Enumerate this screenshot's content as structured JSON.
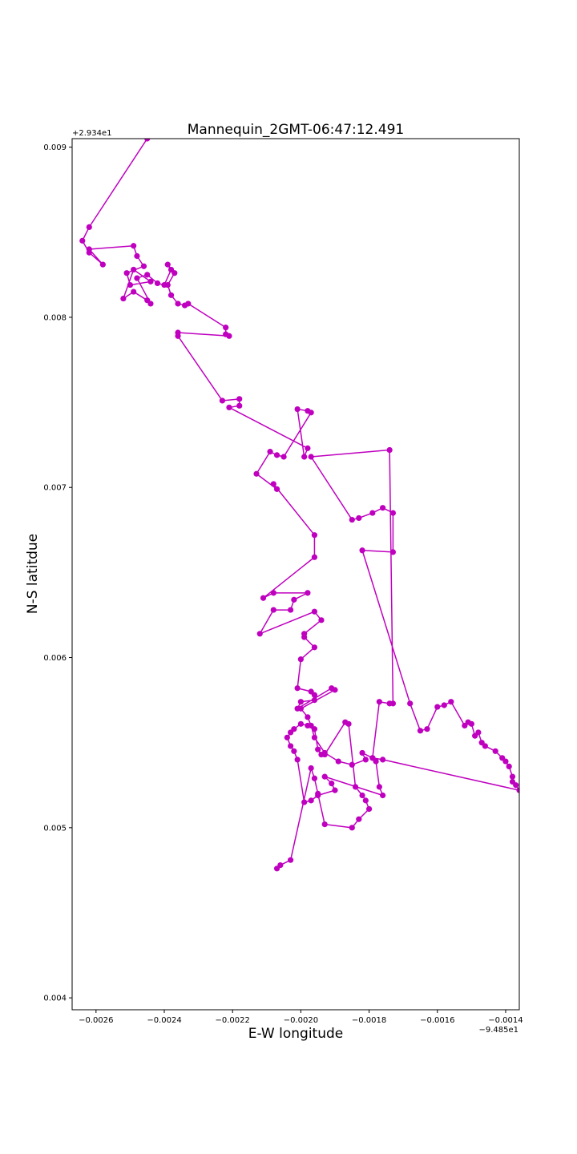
{
  "chart_data": {
    "type": "line",
    "title": "Mannequin_2GMT-06:47:12.491",
    "xlabel": "E-W longitude",
    "ylabel": "N-S latitdue",
    "x_offset_text": "−9.485e1",
    "y_offset_text": "+2.934e1",
    "xlim": [
      -0.00267,
      -0.00136
    ],
    "ylim": [
      0.00393,
      0.00905
    ],
    "xticks": [
      -0.0026,
      -0.0024,
      -0.0022,
      -0.002,
      -0.0018,
      -0.0016,
      -0.0014
    ],
    "xtick_labels": [
      "−0.0026",
      "−0.0024",
      "−0.0022",
      "−0.0020",
      "−0.0018",
      "−0.0016",
      "−0.0014"
    ],
    "yticks": [
      0.004,
      0.005,
      0.006,
      0.007,
      0.008,
      0.009
    ],
    "ytick_labels": [
      "0.004",
      "0.005",
      "0.006",
      "0.007",
      "0.008",
      "0.009"
    ],
    "grid": false,
    "color": "#bf00bf",
    "marker": "circle",
    "series": [
      {
        "x": [
          -0.00245,
          -0.00262,
          -0.00264,
          -0.00262,
          -0.00258,
          -0.00262,
          -0.00249,
          -0.00248,
          -0.00246,
          -0.00251,
          -0.0025,
          -0.00244,
          -0.00249,
          -0.00252,
          -0.00249,
          -0.00245,
          -0.00244,
          -0.00248,
          -0.00245,
          -0.00242,
          -0.0024,
          -0.00238,
          -0.00239,
          -0.00237,
          -0.00239,
          -0.00238,
          -0.00236,
          -0.00234,
          -0.00233,
          -0.00222,
          -0.00222,
          -0.00221,
          -0.00236,
          -0.00236,
          -0.00223,
          -0.00218,
          -0.00218,
          -0.00221,
          -0.00198,
          -0.00199,
          -0.00201,
          -0.00198,
          -0.00197,
          -0.00205,
          -0.00207,
          -0.00209,
          -0.00213,
          -0.00207,
          -0.00208,
          -0.00196,
          -0.00196,
          -0.00211,
          -0.00208,
          -0.00198,
          -0.00202,
          -0.00203,
          -0.00208,
          -0.00212,
          -0.00196,
          -0.00194,
          -0.00199,
          -0.00199,
          -0.00196,
          -0.002,
          -0.00201,
          -0.00197,
          -0.00196,
          -0.00196,
          -0.002,
          -0.00201,
          -0.00191,
          -0.0019,
          -0.002,
          -0.00198,
          -0.00197,
          -0.00196,
          -0.00193,
          -0.00189,
          -0.00185,
          -0.00181,
          -0.00182,
          -0.00179,
          -0.00177,
          -0.00174,
          -0.00173,
          -0.00174,
          -0.00197,
          -0.00185,
          -0.00183,
          -0.00179,
          -0.00176,
          -0.00173,
          -0.00173,
          -0.00182,
          -0.00168,
          -0.00165,
          -0.00163,
          -0.0016,
          -0.00158,
          -0.00156,
          -0.00152,
          -0.00151,
          -0.0015,
          -0.00149,
          -0.00148,
          -0.00147,
          -0.00146,
          -0.00143,
          -0.00141,
          -0.0014,
          -0.00139,
          -0.00138,
          -0.00138,
          -0.00137,
          -0.00136,
          -0.00176,
          -0.00179,
          -0.00178,
          -0.00177,
          -0.00176,
          -0.00193,
          -0.00191,
          -0.0019,
          -0.00195,
          -0.00197,
          -0.00199,
          -0.00201,
          -0.00202,
          -0.00203,
          -0.00204,
          -0.00203,
          -0.00202,
          -0.002,
          -0.00198,
          -0.00196,
          -0.00195,
          -0.00194,
          -0.00193,
          -0.00187,
          -0.00186,
          -0.00184,
          -0.00182,
          -0.00181,
          -0.0018,
          -0.00183,
          -0.00185,
          -0.00193,
          -0.00195,
          -0.00196,
          -0.00197,
          -0.00203,
          -0.00206,
          -0.00207
        ],
        "y": [
          0.00905,
          0.00853,
          0.00845,
          0.00838,
          0.00831,
          0.0084,
          0.00842,
          0.00836,
          0.0083,
          0.00826,
          0.00819,
          0.00821,
          0.00828,
          0.00811,
          0.00815,
          0.0081,
          0.00808,
          0.00823,
          0.00825,
          0.0082,
          0.00819,
          0.00828,
          0.00831,
          0.00826,
          0.00819,
          0.00813,
          0.00808,
          0.00807,
          0.00808,
          0.00794,
          0.0079,
          0.00789,
          0.00791,
          0.00789,
          0.00751,
          0.00752,
          0.00748,
          0.00747,
          0.00723,
          0.00718,
          0.00746,
          0.00745,
          0.00744,
          0.00718,
          0.00719,
          0.00721,
          0.00708,
          0.00699,
          0.00702,
          0.00672,
          0.00659,
          0.00635,
          0.00638,
          0.00638,
          0.00634,
          0.00628,
          0.00628,
          0.00614,
          0.00627,
          0.00622,
          0.00614,
          0.00612,
          0.00606,
          0.00599,
          0.00582,
          0.0058,
          0.00578,
          0.00575,
          0.00574,
          0.0057,
          0.00582,
          0.00581,
          0.0057,
          0.00565,
          0.0056,
          0.00553,
          0.00544,
          0.00539,
          0.00537,
          0.0054,
          0.00544,
          0.00541,
          0.00574,
          0.00573,
          0.00573,
          0.00722,
          0.00718,
          0.00681,
          0.00682,
          0.00685,
          0.00688,
          0.00685,
          0.00662,
          0.00663,
          0.00573,
          0.00557,
          0.00558,
          0.00571,
          0.00572,
          0.00574,
          0.0056,
          0.00562,
          0.00561,
          0.00554,
          0.00556,
          0.0055,
          0.00548,
          0.00545,
          0.00541,
          0.00539,
          0.00536,
          0.0053,
          0.00527,
          0.00525,
          0.00522,
          0.0054,
          0.00541,
          0.00539,
          0.00524,
          0.00519,
          0.0053,
          0.00526,
          0.00522,
          0.00519,
          0.00516,
          0.00515,
          0.0054,
          0.00545,
          0.00548,
          0.00553,
          0.00556,
          0.00558,
          0.00561,
          0.0056,
          0.00558,
          0.00546,
          0.00543,
          0.00543,
          0.00562,
          0.00561,
          0.00524,
          0.00519,
          0.00516,
          0.00511,
          0.00505,
          0.005,
          0.00502,
          0.0052,
          0.00529,
          0.00535,
          0.00481,
          0.00478,
          0.00476
        ]
      }
    ]
  }
}
